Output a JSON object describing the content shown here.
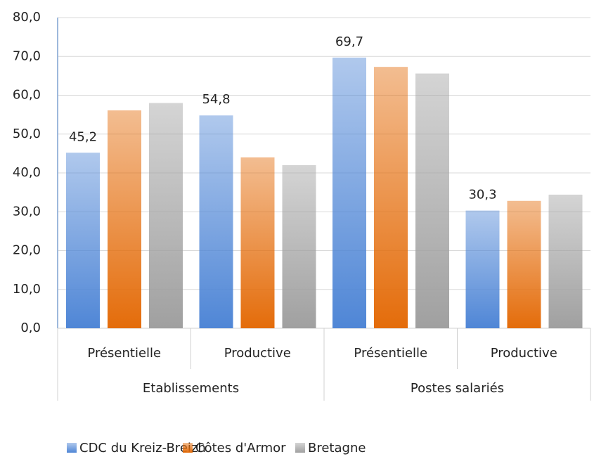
{
  "chart_data": {
    "type": "bar",
    "categories": [
      "Présentielle",
      "Productive",
      "Présentielle",
      "Productive"
    ],
    "groups": [
      "Etablissements",
      "Postes salariés"
    ],
    "series": [
      {
        "name": "CDC du Kreiz-Breizh",
        "color": "#4f86d6",
        "values": [
          45.2,
          54.8,
          69.7,
          30.3
        ],
        "value_labels": [
          "45,2",
          "54,8",
          "69,7",
          "30,3"
        ]
      },
      {
        "name": "Côtes d'Armor",
        "color": "#e46c0a",
        "values": [
          56.1,
          44.0,
          67.3,
          32.8
        ]
      },
      {
        "name": "Bretagne",
        "color": "#a0a0a0",
        "values": [
          58.0,
          42.0,
          65.6,
          34.4
        ]
      }
    ],
    "ylim": [
      0,
      80
    ],
    "yticks": [
      {
        "value": 0,
        "label": "0,0"
      },
      {
        "value": 10,
        "label": "10,0"
      },
      {
        "value": 20,
        "label": "20,0"
      },
      {
        "value": 30,
        "label": "30,0"
      },
      {
        "value": 40,
        "label": "40,0"
      },
      {
        "value": 50,
        "label": "50,0"
      },
      {
        "value": 60,
        "label": "60,0"
      },
      {
        "value": 70,
        "label": "70,0"
      },
      {
        "value": 80,
        "label": "80,0"
      }
    ],
    "grid": true
  }
}
